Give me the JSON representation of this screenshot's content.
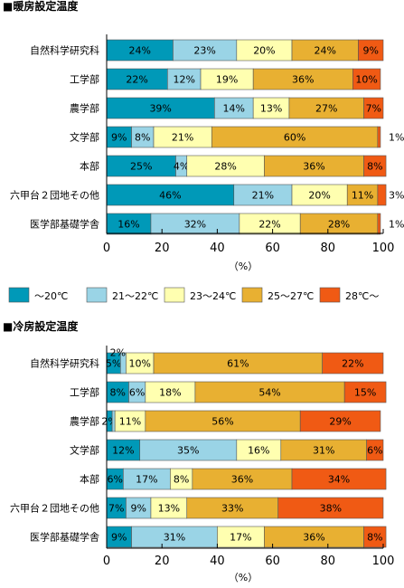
{
  "colors": [
    "#0099b8",
    "#9ad4e6",
    "#ffffb0",
    "#e8b032",
    "#f05a14"
  ],
  "legend": [
    "～20℃",
    "21～22℃",
    "23～24℃",
    "25～27℃",
    "28℃～"
  ],
  "chart_data": [
    {
      "type": "bar",
      "orientation": "horizontal",
      "stacked": true,
      "title": "■暖房設定温度",
      "xlabel": "（%）",
      "xlim": [
        0,
        100
      ],
      "xticks": [
        "0",
        "20",
        "40",
        "60",
        "80",
        "100"
      ],
      "categories": [
        "自然科学研究科",
        "工学部",
        "農学部",
        "文学部",
        "本部",
        "六甲台２団地その他",
        "医学部基礎学舎"
      ],
      "series": [
        {
          "name": "～20℃",
          "values": [
            24,
            22,
            39,
            9,
            25,
            46,
            16
          ]
        },
        {
          "name": "21～22℃",
          "values": [
            23,
            12,
            14,
            8,
            4,
            21,
            32
          ]
        },
        {
          "name": "23～24℃",
          "values": [
            20,
            19,
            13,
            21,
            28,
            20,
            22
          ]
        },
        {
          "name": "25～27℃",
          "values": [
            24,
            36,
            27,
            60,
            36,
            11,
            28
          ]
        },
        {
          "name": "28℃～",
          "values": [
            9,
            10,
            7,
            1,
            8,
            3,
            1
          ]
        }
      ],
      "value_labels": [
        [
          "24%",
          "23%",
          "20%",
          "24%",
          "9%"
        ],
        [
          "22%",
          "12%",
          "19%",
          "36%",
          "10%"
        ],
        [
          "39%",
          "14%",
          "13%",
          "27%",
          "7%"
        ],
        [
          "9%",
          "8%",
          "21%",
          "60%",
          "1%"
        ],
        [
          "25%",
          "4%",
          "28%",
          "36%",
          "8%"
        ],
        [
          "46%",
          "21%",
          "20%",
          "11%",
          "3%"
        ],
        [
          "16%",
          "32%",
          "22%",
          "28%",
          "1%"
        ]
      ]
    },
    {
      "type": "bar",
      "orientation": "horizontal",
      "stacked": true,
      "title": "■冷房設定温度",
      "xlabel": "（%）",
      "xlim": [
        0,
        100
      ],
      "xticks": [
        "0",
        "20",
        "40",
        "60",
        "80",
        "100"
      ],
      "categories": [
        "自然科学研究科",
        "工学部",
        "農学部",
        "文学部",
        "本部",
        "六甲台２団地その他",
        "医学部基礎学舎"
      ],
      "series": [
        {
          "name": "～20℃",
          "values": [
            5,
            8,
            2,
            12,
            6,
            7,
            9
          ]
        },
        {
          "name": "21～22℃",
          "values": [
            2,
            6,
            1,
            35,
            17,
            9,
            31
          ]
        },
        {
          "name": "23～24℃",
          "values": [
            10,
            18,
            11,
            16,
            8,
            13,
            17
          ]
        },
        {
          "name": "25～27℃",
          "values": [
            61,
            54,
            56,
            31,
            36,
            33,
            36
          ]
        },
        {
          "name": "28℃～",
          "values": [
            22,
            15,
            29,
            6,
            34,
            38,
            8
          ]
        }
      ],
      "value_labels": [
        [
          "5%",
          "2%",
          "10%",
          "61%",
          "22%"
        ],
        [
          "8%",
          "6%",
          "18%",
          "54%",
          "15%"
        ],
        [
          "2%",
          "",
          "11%",
          "56%",
          "29%"
        ],
        [
          "12%",
          "35%",
          "16%",
          "31%",
          "6%"
        ],
        [
          "6%",
          "17%",
          "8%",
          "36%",
          "34%"
        ],
        [
          "7%",
          "9%",
          "13%",
          "33%",
          "38%"
        ],
        [
          "9%",
          "31%",
          "17%",
          "36%",
          "8%"
        ]
      ]
    }
  ]
}
